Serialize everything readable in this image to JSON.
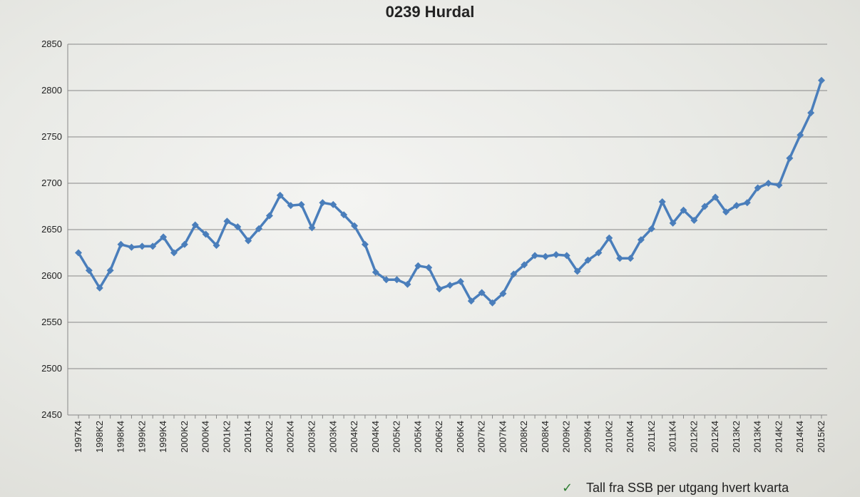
{
  "chart_data": {
    "type": "line",
    "title": "0239 Hurdal",
    "categories": [
      "1997K4",
      null,
      "1998K2",
      null,
      "1998K4",
      null,
      "1999K2",
      null,
      "1999K4",
      null,
      "2000K2",
      null,
      "2000K4",
      null,
      "2001K2",
      null,
      "2001K4",
      null,
      "2002K2",
      null,
      "2002K4",
      null,
      "2003K2",
      null,
      "2003K4",
      null,
      "2004K2",
      null,
      "2004K4",
      null,
      "2005K2",
      null,
      "2005K4",
      null,
      "2006K2",
      null,
      "2006K4",
      null,
      "2007K2",
      null,
      "2007K4",
      null,
      "2008K2",
      null,
      "2008K4",
      null,
      "2009K2",
      null,
      "2009K4",
      null,
      "2010K2",
      null,
      "2010K4",
      null,
      "2011K2",
      null,
      "2011K4",
      null,
      "2012K2",
      null,
      "2012K4",
      null,
      "2013K2",
      null,
      "2013K4",
      null,
      "2014K2",
      null,
      "2014K4",
      null,
      "2015K2"
    ],
    "series": [
      {
        "color": "#4a7ebb",
        "values": [
          2625,
          2606,
          2587,
          2606,
          2634,
          2631,
          2632,
          2632,
          2642,
          2625,
          2634,
          2655,
          2645,
          2633,
          2659,
          2653,
          2638,
          2651,
          2665,
          2687,
          2676,
          2677,
          2652,
          2679,
          2677,
          2666,
          2654,
          2634,
          2604,
          2596,
          2596,
          2591,
          2611,
          2609,
          2586,
          2590,
          2594,
          2573,
          2582,
          2571,
          2581,
          2602,
          2612,
          2622,
          2621,
          2623,
          2622,
          2605,
          2617,
          2625,
          2641,
          2619,
          2619,
          2639,
          2651,
          2680,
          2657,
          2671,
          2660,
          2675,
          2685,
          2669,
          2676,
          2679,
          2695,
          2700,
          2698,
          2727,
          2752,
          2776,
          2811
        ]
      }
    ],
    "ylim": [
      2450,
      2850
    ],
    "yticks": [
      2450,
      2500,
      2550,
      2600,
      2650,
      2700,
      2750,
      2800,
      2850
    ],
    "grid": true,
    "footnote_mark": "✓",
    "footnote": "Tall fra SSB per utgang hvert kvarta"
  }
}
